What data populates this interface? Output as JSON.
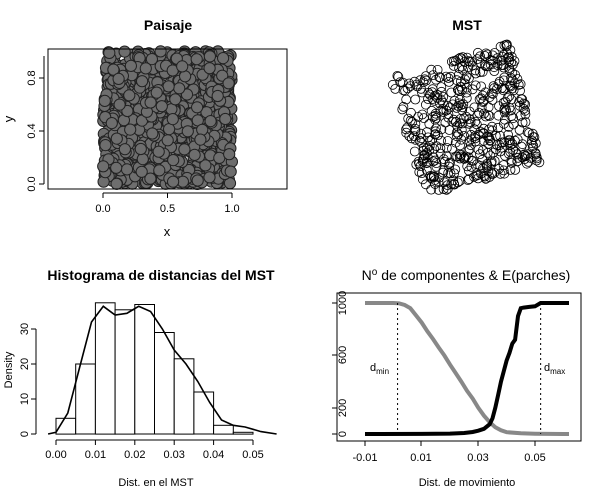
{
  "panels": {
    "paisaje": {
      "title": "Paisaje",
      "xlabel": "x",
      "ylabel": "y",
      "x_ticks": [
        "0.0",
        "0.5",
        "1.0"
      ],
      "y_ticks": [
        "0.0",
        "0.4",
        "0.8"
      ]
    },
    "mst": {
      "title": "MST"
    },
    "hist": {
      "title": "Histograma de distancias del MST",
      "xlabel": "Dist. en el MST",
      "ylabel": "Density",
      "x_ticks": [
        "0.00",
        "0.01",
        "0.02",
        "0.03",
        "0.04",
        "0.05"
      ],
      "y_ticks": [
        "0",
        "10",
        "20",
        "30"
      ]
    },
    "comp": {
      "title_prefix": "N",
      "title_sup": "o",
      "title_rest": " de componentes & E(parches)",
      "xlabel": "Dist. de movimiento",
      "x_ticks": [
        "-0.01",
        "0.01",
        "0.03",
        "0.05"
      ],
      "y_ticks": [
        "0",
        "200",
        "600",
        "1000"
      ],
      "dmin_base": "d",
      "dmin_sub": "min",
      "dmax_base": "d",
      "dmax_sub": "max"
    }
  },
  "chart_data": [
    {
      "type": "scatter",
      "title": "Paisaje",
      "xlabel": "x",
      "ylabel": "y",
      "xlim": [
        -0.45,
        1.45
      ],
      "ylim": [
        -0.03,
        1.03
      ],
      "n_points_approx": 1000,
      "point_style": "grey-filled circles with dark outline, densely covering the unit square"
    },
    {
      "type": "scatter",
      "title": "MST",
      "axes": "none",
      "n_points_approx": 500,
      "point_style": "open black circles in a rotated square arrangement"
    },
    {
      "type": "bar",
      "title": "Histograma de distancias del MST",
      "xlabel": "Dist. en el MST",
      "ylabel": "Density",
      "bin_edges": [
        0.0,
        0.005,
        0.01,
        0.015,
        0.02,
        0.025,
        0.03,
        0.035,
        0.04,
        0.045,
        0.05
      ],
      "values": [
        4.5,
        20,
        37.5,
        35.5,
        37,
        29,
        21.5,
        12,
        2.5,
        0.5
      ],
      "xlim": [
        -0.002,
        0.058
      ],
      "ylim": [
        0,
        40
      ],
      "density_curve": {
        "x": [
          -0.002,
          0.0,
          0.003,
          0.006,
          0.009,
          0.012,
          0.015,
          0.018,
          0.021,
          0.024,
          0.027,
          0.03,
          0.033,
          0.036,
          0.039,
          0.042,
          0.045,
          0.048,
          0.052,
          0.056
        ],
        "y": [
          0,
          0.5,
          6,
          19,
          32,
          36.5,
          34,
          34.5,
          36.5,
          35,
          30,
          24,
          20,
          15,
          9,
          4,
          2.5,
          2,
          0.7,
          0
        ]
      }
    },
    {
      "type": "line",
      "title": "No de componentes & E(parches)",
      "xlabel": "Dist. de movimiento",
      "xlim": [
        -0.01,
        0.063
      ],
      "ylim": [
        0,
        1000
      ],
      "series": [
        {
          "color": "#888888",
          "x": [
            -0.01,
            0.0,
            0.002,
            0.004,
            0.006,
            0.008,
            0.01,
            0.012,
            0.014,
            0.016,
            0.018,
            0.02,
            0.022,
            0.024,
            0.026,
            0.028,
            0.03,
            0.032,
            0.034,
            0.036,
            0.038,
            0.04,
            0.045,
            0.05,
            0.055,
            0.06,
            0.062
          ],
          "values": [
            1000,
            1000,
            998,
            985,
            960,
            905,
            850,
            785,
            725,
            660,
            600,
            530,
            465,
            400,
            330,
            270,
            200,
            140,
            90,
            52,
            28,
            14,
            5,
            2,
            1,
            0,
            0
          ]
        },
        {
          "color": "#000000",
          "x": [
            -0.01,
            0.01,
            0.02,
            0.025,
            0.028,
            0.03,
            0.032,
            0.034,
            0.035,
            0.036,
            0.037,
            0.038,
            0.039,
            0.04,
            0.041,
            0.042,
            0.043,
            0.044,
            0.045,
            0.046,
            0.048,
            0.05,
            0.052,
            0.055,
            0.062
          ],
          "values": [
            0,
            1,
            3,
            8,
            15,
            25,
            40,
            75,
            120,
            200,
            300,
            400,
            480,
            560,
            620,
            690,
            720,
            900,
            960,
            965,
            970,
            975,
            1000,
            1000,
            1000
          ]
        }
      ],
      "vlines": [
        {
          "label": "dmin",
          "x": 0.0015
        },
        {
          "label": "dmax",
          "x": 0.052
        }
      ]
    }
  ]
}
